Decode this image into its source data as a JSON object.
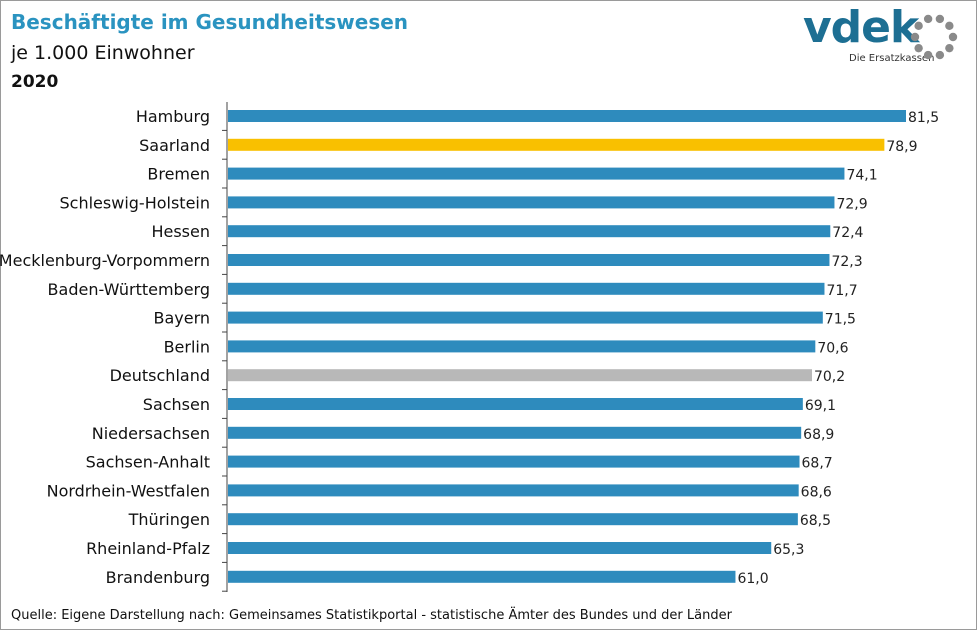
{
  "title": "Beschäftigte im Gesundheitswesen",
  "subtitle": "je 1.000 Einwohner",
  "year": "2020",
  "logo": {
    "text": "vdek",
    "subtext": "Die Ersatzkassen",
    "color": "#1d6f93",
    "ring_color": "#8a8a8a"
  },
  "source": "Quelle: Eigene Darstellung nach: Gemeinsames Statistikportal - statistische Ämter des Bundes und der Länder",
  "colors": {
    "default": "#2e8bbd",
    "highlight": "#f9c000",
    "national": "#b8b8b8"
  },
  "chart_data": {
    "type": "bar",
    "orientation": "horizontal",
    "title": "Beschäftigte im Gesundheitswesen",
    "subtitle": "je 1.000 Einwohner",
    "xlim": [
      0,
      81.5
    ],
    "grid": false,
    "legend": "none",
    "categories": [
      "Hamburg",
      "Saarland",
      "Bremen",
      "Schleswig-Holstein",
      "Hessen",
      "Mecklenburg-Vorpommern",
      "Baden-Württemberg",
      "Bayern",
      "Berlin",
      "Deutschland",
      "Sachsen",
      "Niedersachsen",
      "Sachsen-Anhalt",
      "Nordrhein-Westfalen",
      "Thüringen",
      "Rheinland-Pfalz",
      "Brandenburg"
    ],
    "values": [
      81.5,
      78.9,
      74.1,
      72.9,
      72.4,
      72.3,
      71.7,
      71.5,
      70.6,
      70.2,
      69.1,
      68.9,
      68.7,
      68.6,
      68.5,
      65.3,
      61.0
    ],
    "value_labels": [
      "81,5",
      "78,9",
      "74,1",
      "72,9",
      "72,4",
      "72,3",
      "71,7",
      "71,5",
      "70,6",
      "70,2",
      "69,1",
      "68,9",
      "68,7",
      "68,6",
      "68,5",
      "65,3",
      "61,0"
    ],
    "bar_colors": [
      "default",
      "highlight",
      "default",
      "default",
      "default",
      "default",
      "default",
      "default",
      "default",
      "national",
      "default",
      "default",
      "default",
      "default",
      "default",
      "default",
      "default"
    ]
  }
}
